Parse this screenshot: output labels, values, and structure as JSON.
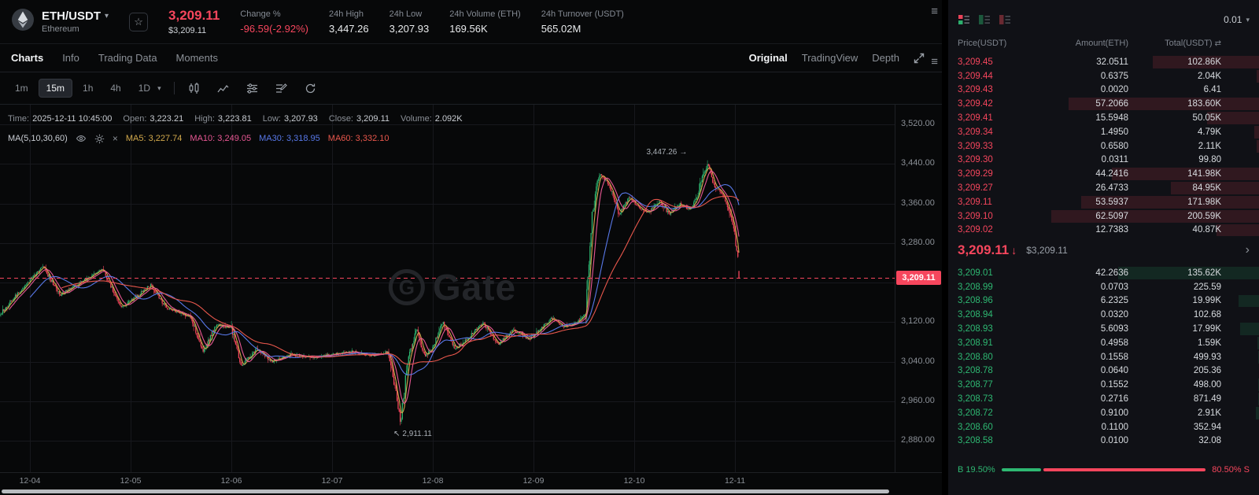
{
  "colors": {
    "up": "#2eb872",
    "down": "#f6465d",
    "accent_red": "#f23c4e"
  },
  "icons": {
    "caret_down": "▾",
    "star": "☆",
    "arrow_down": "↓",
    "chevron_right": "›",
    "close": "×",
    "menu": "≡",
    "total_swap": "⇄",
    "high_arrow": "→",
    "low_arrow": "↖"
  },
  "header": {
    "pair": "ETH/USDT",
    "pair_name": "Ethereum",
    "last_price": "3,209.11",
    "last_price_usd": "$3,209.11",
    "stats": [
      {
        "label": "Change %",
        "value": "-96.59(-2.92%)"
      },
      {
        "label": "24h High",
        "value": "3,447.26"
      },
      {
        "label": "24h Low",
        "value": "3,207.93"
      },
      {
        "label": "24h Volume (ETH)",
        "value": "169.56K"
      },
      {
        "label": "24h Turnover (USDT)",
        "value": "565.02M"
      }
    ]
  },
  "tabs": {
    "left": [
      "Charts",
      "Info",
      "Trading Data",
      "Moments"
    ],
    "right": [
      "Original",
      "TradingView",
      "Depth"
    ]
  },
  "toolbar": {
    "intervals": [
      "1m",
      "15m",
      "1h",
      "4h",
      "1D"
    ]
  },
  "chart": {
    "info_line": {
      "time_label": "Time:",
      "time": "2025-12-11 10:45:00",
      "open_label": "Open:",
      "open": "3,223.21",
      "high_label": "High:",
      "high": "3,223.81",
      "low_label": "Low:",
      "low": "3,207.93",
      "close_label": "Close:",
      "close": "3,209.11",
      "volume_label": "Volume:",
      "volume": "2.092K"
    },
    "ma_line": {
      "label": "MA(5,10,30,60)",
      "ma5_label": "MA5:",
      "ma5": "3,227.74",
      "ma10_label": "MA10:",
      "ma10": "3,249.05",
      "ma30_label": "MA30:",
      "ma30": "3,318.95",
      "ma60_label": "MA60:",
      "ma60": "3,332.10"
    },
    "watermark": "Gate",
    "last_price": "3,209.11",
    "high_annotation": "3,447.26",
    "low_annotation": "2,911.11"
  },
  "chart_data": {
    "type": "candlestick",
    "symbol": "ETH/USDT",
    "interval": "15m",
    "x_tick_labels": [
      "12-04",
      "12-05",
      "12-06",
      "12-07",
      "12-08",
      "12-09",
      "12-10",
      "12-11"
    ],
    "y_tick_labels": [
      "3,520.00",
      "3,440.00",
      "3,360.00",
      "3,280.00",
      "3,120.00",
      "3,040.00",
      "2,960.00",
      "2,880.00"
    ],
    "y_tick_values": [
      3520,
      3440,
      3360,
      3280,
      3120,
      3040,
      2960,
      2880
    ],
    "grid_y_values": [
      3520,
      3440,
      3360,
      3280,
      3200,
      3120,
      3040,
      2960,
      2880
    ],
    "last_price": 3209.11,
    "open": 3223.21,
    "high_24h": 3447.26,
    "low_24h": 3207.93,
    "high": {
      "day": 6.73,
      "price": 3447.26,
      "label": "3,447.26"
    },
    "low": {
      "day": 3.68,
      "price": 2911.11,
      "label": "2,911.11"
    },
    "day_start": -0.3,
    "day_end": 7.05,
    "candles_per_day": 96,
    "up_color": "#2eb872",
    "down_color": "#f6465d",
    "ma": [
      {
        "window": 5,
        "color": "#d2a94c"
      },
      {
        "window": 10,
        "color": "#e75793"
      },
      {
        "window": 30,
        "color": "#5878e8"
      },
      {
        "window": 60,
        "color": "#e8574c"
      }
    ],
    "price_anchors": [
      [
        -0.3,
        3135
      ],
      [
        -0.18,
        3165
      ],
      [
        0.0,
        3205
      ],
      [
        0.13,
        3232
      ],
      [
        0.3,
        3175
      ],
      [
        0.5,
        3200
      ],
      [
        0.72,
        3228
      ],
      [
        0.9,
        3150
      ],
      [
        1.05,
        3170
      ],
      [
        1.2,
        3195
      ],
      [
        1.35,
        3150
      ],
      [
        1.6,
        3130
      ],
      [
        1.72,
        3058
      ],
      [
        1.85,
        3115
      ],
      [
        2.0,
        3108
      ],
      [
        2.1,
        3030
      ],
      [
        2.25,
        3065
      ],
      [
        2.4,
        3040
      ],
      [
        2.6,
        3056
      ],
      [
        2.8,
        3048
      ],
      [
        3.0,
        3054
      ],
      [
        3.2,
        3060
      ],
      [
        3.4,
        3052
      ],
      [
        3.55,
        3060
      ],
      [
        3.62,
        2995
      ],
      [
        3.68,
        2915
      ],
      [
        3.75,
        3040
      ],
      [
        3.84,
        3105
      ],
      [
        3.92,
        3050
      ],
      [
        4.0,
        3068
      ],
      [
        4.1,
        3120
      ],
      [
        4.22,
        3065
      ],
      [
        4.35,
        3088
      ],
      [
        4.5,
        3118
      ],
      [
        4.65,
        3075
      ],
      [
        4.8,
        3105
      ],
      [
        4.95,
        3085
      ],
      [
        5.05,
        3102
      ],
      [
        5.18,
        3128
      ],
      [
        5.3,
        3110
      ],
      [
        5.45,
        3122
      ],
      [
        5.52,
        3145
      ],
      [
        5.58,
        3330
      ],
      [
        5.65,
        3420
      ],
      [
        5.75,
        3398
      ],
      [
        5.85,
        3338
      ],
      [
        5.95,
        3372
      ],
      [
        6.05,
        3350
      ],
      [
        6.15,
        3342
      ],
      [
        6.25,
        3365
      ],
      [
        6.35,
        3338
      ],
      [
        6.45,
        3360
      ],
      [
        6.55,
        3348
      ],
      [
        6.62,
        3372
      ],
      [
        6.68,
        3415
      ],
      [
        6.73,
        3442
      ],
      [
        6.8,
        3392
      ],
      [
        6.87,
        3382
      ],
      [
        6.93,
        3352
      ],
      [
        7.0,
        3300
      ],
      [
        7.03,
        3240
      ],
      [
        7.05,
        3209
      ]
    ]
  },
  "orderbook": {
    "precision": "0.01",
    "columns": [
      "Price(USDT)",
      "Amount(ETH)",
      "Total(USDT)"
    ],
    "asks": [
      {
        "price": "3,209.45",
        "amount": "32.0511",
        "total": "102.86K"
      },
      {
        "price": "3,209.44",
        "amount": "0.6375",
        "total": "2.04K"
      },
      {
        "price": "3,209.43",
        "amount": "0.0020",
        "total": "6.41"
      },
      {
        "price": "3,209.42",
        "amount": "57.2066",
        "total": "183.60K"
      },
      {
        "price": "3,209.41",
        "amount": "15.5948",
        "total": "50.05K"
      },
      {
        "price": "3,209.34",
        "amount": "1.4950",
        "total": "4.79K"
      },
      {
        "price": "3,209.33",
        "amount": "0.6580",
        "total": "2.11K"
      },
      {
        "price": "3,209.30",
        "amount": "0.0311",
        "total": "99.80"
      },
      {
        "price": "3,209.29",
        "amount": "44.2416",
        "total": "141.98K"
      },
      {
        "price": "3,209.27",
        "amount": "26.4733",
        "total": "84.95K"
      },
      {
        "price": "3,209.11",
        "amount": "53.5937",
        "total": "171.98K"
      },
      {
        "price": "3,209.10",
        "amount": "62.5097",
        "total": "200.59K"
      },
      {
        "price": "3,209.02",
        "amount": "12.7383",
        "total": "40.87K"
      }
    ],
    "mid": {
      "price": "3,209.11",
      "usd": "$3,209.11",
      "direction": "down"
    },
    "bids": [
      {
        "price": "3,209.01",
        "amount": "42.2636",
        "total": "135.62K"
      },
      {
        "price": "3,208.99",
        "amount": "0.0703",
        "total": "225.59"
      },
      {
        "price": "3,208.96",
        "amount": "6.2325",
        "total": "19.99K"
      },
      {
        "price": "3,208.94",
        "amount": "0.0320",
        "total": "102.68"
      },
      {
        "price": "3,208.93",
        "amount": "5.6093",
        "total": "17.99K"
      },
      {
        "price": "3,208.91",
        "amount": "0.4958",
        "total": "1.59K"
      },
      {
        "price": "3,208.80",
        "amount": "0.1558",
        "total": "499.93"
      },
      {
        "price": "3,208.78",
        "amount": "0.0640",
        "total": "205.36"
      },
      {
        "price": "3,208.77",
        "amount": "0.1552",
        "total": "498.00"
      },
      {
        "price": "3,208.73",
        "amount": "0.2716",
        "total": "871.49"
      },
      {
        "price": "3,208.72",
        "amount": "0.9100",
        "total": "2.91K"
      },
      {
        "price": "3,208.60",
        "amount": "0.1100",
        "total": "352.94"
      },
      {
        "price": "3,208.58",
        "amount": "0.0100",
        "total": "32.08"
      }
    ],
    "buy_label": "B",
    "sell_label": "S",
    "buy_ratio": "19.50%",
    "sell_ratio": "80.50%",
    "buy_pct": 19.5
  }
}
